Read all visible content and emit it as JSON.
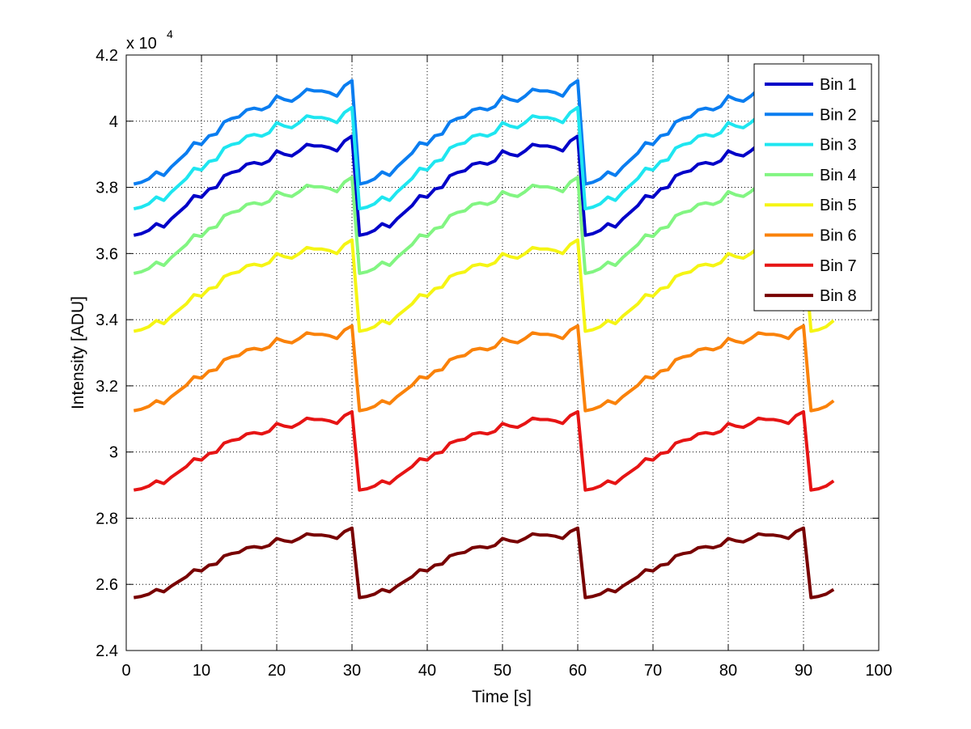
{
  "chart_data": {
    "type": "line",
    "title": "",
    "xlabel": "Time [s]",
    "ylabel": "Intensity [ADU]",
    "xlim": [
      0,
      100
    ],
    "ylim": [
      24000,
      42000
    ],
    "x_ticks": [
      0,
      10,
      20,
      30,
      40,
      50,
      60,
      70,
      80,
      90,
      100
    ],
    "x_tick_labels": [
      "0",
      "10",
      "20",
      "30",
      "40",
      "50",
      "60",
      "70",
      "80",
      "90",
      "100"
    ],
    "y_ticks": [
      24000,
      26000,
      28000,
      30000,
      32000,
      34000,
      36000,
      38000,
      40000,
      42000
    ],
    "y_tick_labels": [
      "2.4",
      "2.6",
      "2.8",
      "3",
      "3.2",
      "3.4",
      "3.6",
      "3.8",
      "4",
      "4.2"
    ],
    "y_exponent": {
      "base": "x 10",
      "power": "4"
    },
    "grid": true,
    "legend_position": "top-right",
    "pattern_offsets": [
      0,
      50,
      150,
      350,
      250,
      500,
      700,
      900,
      1200,
      1150,
      1400,
      1450,
      1800,
      1900,
      1950,
      2150,
      2200,
      2150,
      2250,
      2550,
      2450,
      2400,
      2550,
      2750,
      2700,
      2700,
      2650,
      2550,
      2850,
      3000
    ],
    "series": [
      {
        "name": "Bin 1",
        "color": "#0000c8",
        "base": 36550
      },
      {
        "name": "Bin 2",
        "color": "#0a7df0",
        "base": 38100
      },
      {
        "name": "Bin 3",
        "color": "#1ee6f0",
        "base": 37350
      },
      {
        "name": "Bin 4",
        "color": "#82f582",
        "base": 35400
      },
      {
        "name": "Bin 5",
        "color": "#f5f514",
        "base": 33650
      },
      {
        "name": "Bin 6",
        "color": "#fa820a",
        "base": 31250
      },
      {
        "name": "Bin 7",
        "color": "#e61414",
        "base": 28850
      },
      {
        "name": "Bin 8",
        "color": "#780000",
        "base": 25600
      }
    ]
  }
}
